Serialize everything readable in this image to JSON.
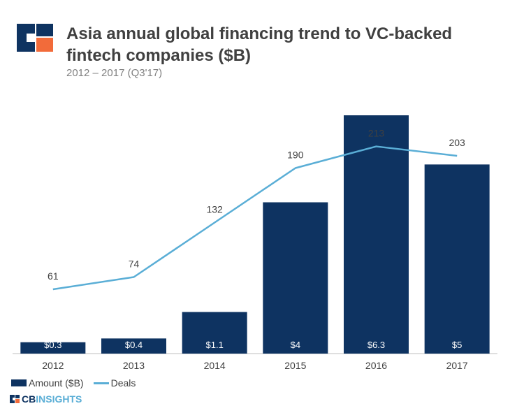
{
  "header": {
    "title": "Asia annual global financing trend to VC-backed fintech companies ($B)",
    "subtitle": "2012 – 2017 (Q3'17)",
    "logo_icon": "cb-insights-logo-icon"
  },
  "legend": {
    "bar_label": "Amount ($B)",
    "line_label": "Deals"
  },
  "footer": {
    "brand_cb": "CB",
    "brand_insights": "INSIGHTS"
  },
  "colors": {
    "bar": "#0e3361",
    "line": "#5aaed6",
    "logo_orange": "#f26b3a",
    "axis_text": "#404040"
  },
  "chart_data": {
    "type": "bar",
    "title": "Asia annual global financing trend to VC-backed fintech companies ($B)",
    "subtitle": "2012 – 2017 (Q3'17)",
    "categories": [
      "2012",
      "2013",
      "2014",
      "2015",
      "2016",
      "2017"
    ],
    "series": [
      {
        "name": "Amount ($B)",
        "type": "bar",
        "values": [
          0.3,
          0.4,
          1.1,
          4,
          6.3,
          5
        ],
        "labels": [
          "$0.3",
          "$0.4",
          "$1.1",
          "$4",
          "$6.3",
          "$5"
        ]
      },
      {
        "name": "Deals",
        "type": "line",
        "values": [
          61,
          74,
          132,
          190,
          213,
          203
        ],
        "labels": [
          "61",
          "74",
          "132",
          "190",
          "213",
          "203"
        ]
      }
    ],
    "ylim_amount": [
      0,
      6.3
    ],
    "ylim_deals": [
      0,
      240
    ],
    "grid": false,
    "legend_position": "bottom-left"
  }
}
